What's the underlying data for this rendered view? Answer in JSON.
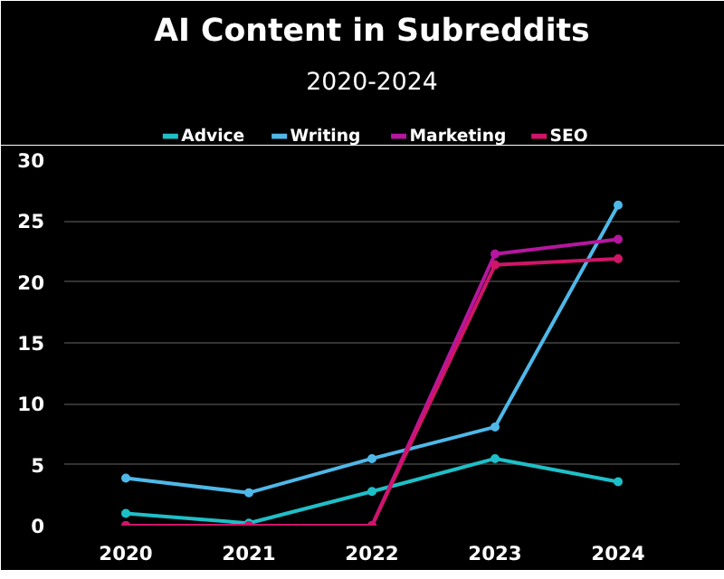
{
  "chart_data": {
    "type": "line",
    "title": "AI Content in Subreddits",
    "subtitle": "2020-2024",
    "categories": [
      "2020",
      "2021",
      "2022",
      "2023",
      "2024"
    ],
    "series": [
      {
        "name": "Advice",
        "color": "#1fbfc8",
        "values": [
          1.0,
          0.2,
          2.8,
          5.5,
          3.6
        ]
      },
      {
        "name": "Writing",
        "color": "#4fb8e8",
        "values": [
          3.9,
          2.7,
          5.5,
          8.1,
          26.3
        ]
      },
      {
        "name": "Marketing",
        "color": "#b5179e",
        "values": [
          0,
          0,
          0,
          22.3,
          23.5
        ]
      },
      {
        "name": "SEO",
        "color": "#d01568",
        "values": [
          0,
          0,
          0,
          21.4,
          21.9
        ]
      }
    ],
    "ylim": [
      0,
      30
    ],
    "yticks": [
      0,
      5,
      10,
      15,
      20,
      25,
      30
    ],
    "grid": "y",
    "legend": "top",
    "marker": "circle",
    "line_style": "solid"
  }
}
